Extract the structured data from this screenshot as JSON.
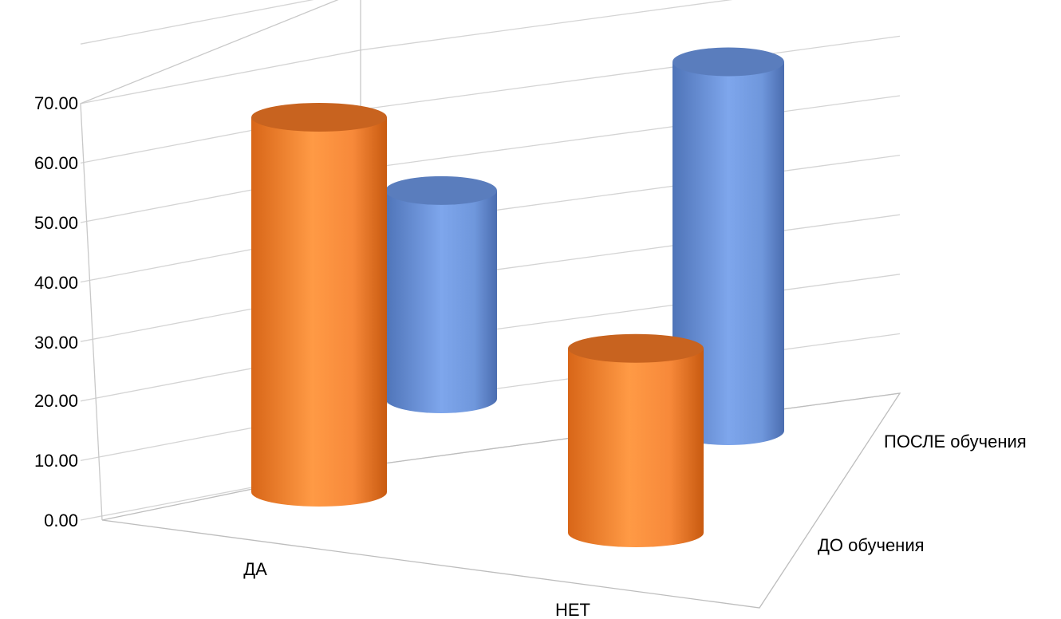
{
  "chart_data": {
    "type": "bar",
    "subtype": "3d-cylinder",
    "title": "",
    "categories": [
      "ДА",
      "НЕТ"
    ],
    "series": [
      {
        "name": "ДО обучения",
        "color": "#f5893a",
        "values": [
          63,
          31
        ]
      },
      {
        "name": "ПОСЛЕ обучения",
        "color": "#6f9ae0",
        "values": [
          35,
          62
        ]
      }
    ],
    "yticks": [
      "0.00",
      "10.00",
      "20.00",
      "30.00",
      "40.00",
      "50.00",
      "60.00",
      "70.00"
    ],
    "ylim": [
      0,
      70
    ],
    "grid": true,
    "legend": "none"
  }
}
